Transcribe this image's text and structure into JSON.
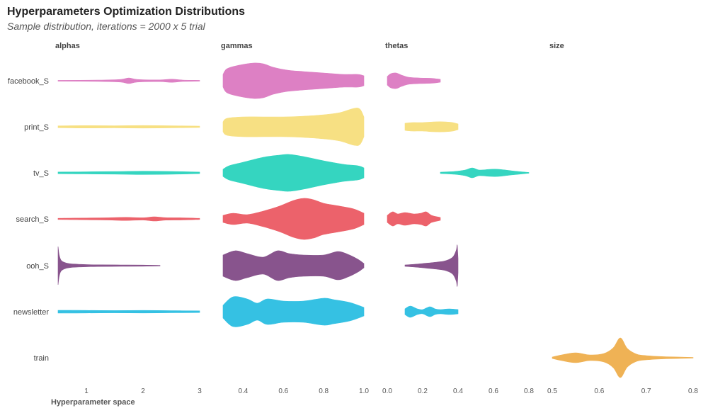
{
  "header": {
    "title": "Hyperparameters Optimization Distributions",
    "subtitle": "Sample distribution, iterations = 2000 x 5 trial"
  },
  "chart_data": {
    "type": "violin",
    "title": "Hyperparameters Optimization Distributions",
    "subtitle": "Sample distribution, iterations = 2000 x 5 trial",
    "xlabel": "Hyperparameter space",
    "ylabel": "",
    "grid": false,
    "legend": "none",
    "rows": [
      "facebook_S",
      "print_S",
      "tv_S",
      "search_S",
      "ooh_S",
      "newsletter",
      "train"
    ],
    "colors": {
      "facebook_S": "#dd80c4",
      "print_S": "#f7e083",
      "tv_S": "#35d5c0",
      "search_S": "#ec626b",
      "ooh_S": "#88548d",
      "newsletter": "#35c1e3",
      "train": "#efb255"
    },
    "panels": [
      {
        "name": "alphas",
        "xlim": [
          0.5,
          3
        ],
        "ticks": [
          1,
          2,
          3
        ],
        "tick_labels": [
          "1",
          "2",
          "3"
        ],
        "violins": [
          {
            "row": "facebook_S",
            "min": 0.5,
            "max": 3,
            "profile": [
              [
                0.5,
                0.6
              ],
              [
                1.2,
                0.9
              ],
              [
                1.6,
                1.8
              ],
              [
                1.75,
                4
              ],
              [
                1.9,
                1.8
              ],
              [
                2.3,
                1.2
              ],
              [
                2.5,
                2.2
              ],
              [
                2.7,
                1
              ],
              [
                3,
                0.6
              ]
            ]
          },
          {
            "row": "print_S",
            "min": 0.5,
            "max": 3,
            "profile": [
              [
                0.5,
                1.3
              ],
              [
                1,
                1.7
              ],
              [
                1.5,
                1.5
              ],
              [
                2,
                1.8
              ],
              [
                2.5,
                1.5
              ],
              [
                3,
                1
              ]
            ]
          },
          {
            "row": "tv_S",
            "min": 0.5,
            "max": 3,
            "profile": [
              [
                0.5,
                1.2
              ],
              [
                1,
                1.5
              ],
              [
                1.5,
                1.8
              ],
              [
                2,
                2.3
              ],
              [
                2.5,
                2
              ],
              [
                3,
                1.1
              ]
            ]
          },
          {
            "row": "search_S",
            "min": 0.5,
            "max": 3,
            "profile": [
              [
                0.5,
                0.8
              ],
              [
                1,
                1.2
              ],
              [
                1.4,
                1.6
              ],
              [
                1.7,
                2.2
              ],
              [
                2,
                1.6
              ],
              [
                2.2,
                3
              ],
              [
                2.4,
                1.7
              ],
              [
                2.7,
                1.5
              ],
              [
                3,
                0.8
              ]
            ]
          },
          {
            "row": "ooh_S",
            "min": 0.5,
            "max": 2.3,
            "profile": [
              [
                0.5,
                27
              ],
              [
                0.52,
                15
              ],
              [
                0.55,
                8
              ],
              [
                0.6,
                5
              ],
              [
                0.7,
                2.8
              ],
              [
                0.9,
                1.8
              ],
              [
                1.2,
                1.2
              ],
              [
                1.6,
                1
              ],
              [
                2,
                0.8
              ],
              [
                2.3,
                0.4
              ]
            ]
          },
          {
            "row": "newsletter",
            "min": 0.5,
            "max": 3,
            "profile": [
              [
                0.5,
                2
              ],
              [
                1,
                1.8
              ],
              [
                1.5,
                1.6
              ],
              [
                2,
                1.8
              ],
              [
                2.5,
                1.5
              ],
              [
                3,
                1.2
              ]
            ]
          }
        ]
      },
      {
        "name": "gammas",
        "xlim": [
          0.3,
          1.0
        ],
        "ticks": [
          0.4,
          0.6,
          0.8,
          1.0
        ],
        "tick_labels": [
          "0.4",
          "0.6",
          "0.8",
          "1.0"
        ],
        "violins": [
          {
            "row": "facebook_S",
            "min": 0.3,
            "max": 1.0,
            "profile": [
              [
                0.3,
                9
              ],
              [
                0.32,
                17
              ],
              [
                0.38,
                22
              ],
              [
                0.45,
                25
              ],
              [
                0.5,
                24
              ],
              [
                0.55,
                19
              ],
              [
                0.62,
                15
              ],
              [
                0.7,
                13
              ],
              [
                0.8,
                11
              ],
              [
                0.9,
                9
              ],
              [
                0.97,
                9
              ],
              [
                1.0,
                7
              ]
            ]
          },
          {
            "row": "print_S",
            "min": 0.3,
            "max": 1.0,
            "profile": [
              [
                0.3,
                7
              ],
              [
                0.32,
                12
              ],
              [
                0.4,
                14
              ],
              [
                0.5,
                14
              ],
              [
                0.6,
                14
              ],
              [
                0.7,
                15
              ],
              [
                0.8,
                17
              ],
              [
                0.88,
                20
              ],
              [
                0.95,
                26
              ],
              [
                0.98,
                25
              ],
              [
                1.0,
                14
              ]
            ]
          },
          {
            "row": "tv_S",
            "min": 0.3,
            "max": 1.0,
            "profile": [
              [
                0.3,
                5
              ],
              [
                0.33,
                10
              ],
              [
                0.4,
                15
              ],
              [
                0.5,
                22
              ],
              [
                0.58,
                25
              ],
              [
                0.63,
                26
              ],
              [
                0.7,
                23
              ],
              [
                0.8,
                17
              ],
              [
                0.9,
                12
              ],
              [
                0.97,
                10
              ],
              [
                1.0,
                7
              ]
            ]
          },
          {
            "row": "search_S",
            "min": 0.3,
            "max": 1.0,
            "profile": [
              [
                0.3,
                5
              ],
              [
                0.35,
                8
              ],
              [
                0.42,
                6
              ],
              [
                0.5,
                11
              ],
              [
                0.58,
                18
              ],
              [
                0.65,
                26
              ],
              [
                0.7,
                29
              ],
              [
                0.75,
                27
              ],
              [
                0.8,
                22
              ],
              [
                0.88,
                18
              ],
              [
                0.95,
                14
              ],
              [
                1.0,
                8
              ]
            ]
          },
          {
            "row": "ooh_S",
            "min": 0.3,
            "max": 1.0,
            "profile": [
              [
                0.3,
                15
              ],
              [
                0.36,
                21
              ],
              [
                0.42,
                17
              ],
              [
                0.5,
                12
              ],
              [
                0.57,
                21
              ],
              [
                0.63,
                17
              ],
              [
                0.7,
                15
              ],
              [
                0.8,
                15
              ],
              [
                0.87,
                20
              ],
              [
                0.92,
                16
              ],
              [
                0.97,
                9
              ],
              [
                1.0,
                3
              ]
            ]
          },
          {
            "row": "newsletter",
            "min": 0.3,
            "max": 1.0,
            "profile": [
              [
                0.3,
                9
              ],
              [
                0.35,
                21
              ],
              [
                0.42,
                18
              ],
              [
                0.47,
                12
              ],
              [
                0.52,
                18
              ],
              [
                0.6,
                15
              ],
              [
                0.7,
                15
              ],
              [
                0.8,
                19
              ],
              [
                0.85,
                17
              ],
              [
                0.93,
                13
              ],
              [
                1.0,
                6
              ]
            ]
          }
        ]
      },
      {
        "name": "thetas",
        "xlim": [
          0,
          0.8
        ],
        "ticks": [
          0.0,
          0.2,
          0.4,
          0.6,
          0.8
        ],
        "tick_labels": [
          "0.0",
          "0.2",
          "0.4",
          "0.6",
          "0.8"
        ],
        "violins": [
          {
            "row": "facebook_S",
            "min": 0.0,
            "max": 0.3,
            "profile": [
              [
                0,
                6
              ],
              [
                0.02,
                10
              ],
              [
                0.05,
                11
              ],
              [
                0.08,
                8
              ],
              [
                0.12,
                5
              ],
              [
                0.18,
                4
              ],
              [
                0.25,
                3.5
              ],
              [
                0.3,
                2
              ]
            ]
          },
          {
            "row": "print_S",
            "min": 0.1,
            "max": 0.4,
            "profile": [
              [
                0.1,
                5
              ],
              [
                0.14,
                6
              ],
              [
                0.2,
                6
              ],
              [
                0.26,
                7
              ],
              [
                0.33,
                7
              ],
              [
                0.37,
                6
              ],
              [
                0.4,
                4
              ]
            ]
          },
          {
            "row": "tv_S",
            "min": 0.3,
            "max": 0.8,
            "profile": [
              [
                0.3,
                1
              ],
              [
                0.38,
                2
              ],
              [
                0.44,
                4
              ],
              [
                0.48,
                7
              ],
              [
                0.52,
                4
              ],
              [
                0.58,
                5
              ],
              [
                0.63,
                5
              ],
              [
                0.7,
                3
              ],
              [
                0.8,
                0.5
              ]
            ]
          },
          {
            "row": "search_S",
            "min": 0.0,
            "max": 0.3,
            "profile": [
              [
                0,
                5
              ],
              [
                0.03,
                10
              ],
              [
                0.06,
                7
              ],
              [
                0.1,
                9
              ],
              [
                0.15,
                7
              ],
              [
                0.19,
                8
              ],
              [
                0.22,
                10
              ],
              [
                0.25,
                5
              ],
              [
                0.3,
                2
              ]
            ]
          },
          {
            "row": "ooh_S",
            "min": 0.1,
            "max": 0.4,
            "profile": [
              [
                0.1,
                1
              ],
              [
                0.2,
                3
              ],
              [
                0.28,
                5
              ],
              [
                0.33,
                7
              ],
              [
                0.37,
                12
              ],
              [
                0.39,
                22
              ],
              [
                0.395,
                29
              ],
              [
                0.4,
                10
              ]
            ]
          },
          {
            "row": "newsletter",
            "min": 0.1,
            "max": 0.4,
            "profile": [
              [
                0.1,
                4
              ],
              [
                0.13,
                8
              ],
              [
                0.17,
                4
              ],
              [
                0.2,
                3
              ],
              [
                0.24,
                7
              ],
              [
                0.27,
                4
              ],
              [
                0.3,
                3
              ],
              [
                0.35,
                4
              ],
              [
                0.4,
                3
              ]
            ]
          }
        ]
      },
      {
        "name": "size",
        "xlim": [
          0.5,
          0.8
        ],
        "ticks": [
          0.5,
          0.6,
          0.7,
          0.8
        ],
        "tick_labels": [
          "0.5",
          "0.6",
          "0.7",
          "0.8"
        ],
        "violins": [
          {
            "row": "train",
            "min": 0.5,
            "max": 0.8,
            "profile": [
              [
                0.5,
                1
              ],
              [
                0.52,
                4
              ],
              [
                0.55,
                7
              ],
              [
                0.58,
                4
              ],
              [
                0.61,
                6
              ],
              [
                0.63,
                14
              ],
              [
                0.645,
                28
              ],
              [
                0.66,
                13
              ],
              [
                0.68,
                5
              ],
              [
                0.7,
                3
              ],
              [
                0.74,
                1.5
              ],
              [
                0.8,
                0.5
              ]
            ]
          }
        ]
      }
    ]
  }
}
